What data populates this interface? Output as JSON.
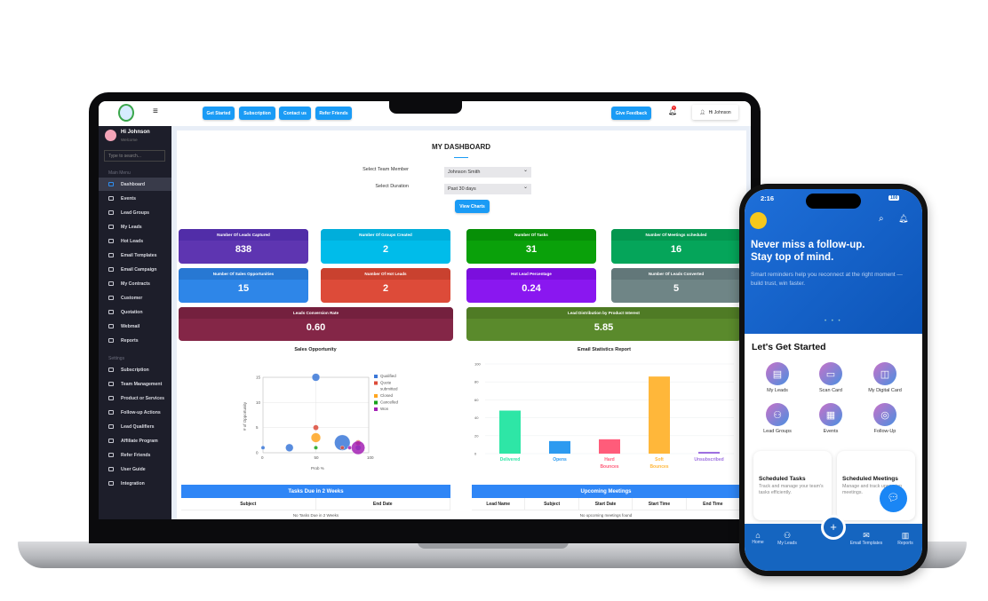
{
  "laptop": {
    "topbar": {
      "buttons": [
        "Get Started",
        "Subscription",
        "Contact us",
        "Refer Friends"
      ],
      "feedback": "Give Feedback",
      "notif_count": "0",
      "user": "Hi Johnson"
    },
    "sidebar": {
      "user_name": "Hi Johnson",
      "user_sub": "Welcome",
      "search_placeholder": "Type to search...",
      "main_menu_label": "Main Menu",
      "settings_label": "Settings",
      "main_items": [
        "Dashboard",
        "Events",
        "Lead Groups",
        "My Leads",
        "Hot Leads",
        "Email Templates",
        "Email Campaign",
        "My Contracts",
        "Customer",
        "Quotation",
        "Webmail",
        "Reports"
      ],
      "settings_items": [
        "Subscription",
        "Team Management",
        "Product or Services",
        "Follow-up Actions",
        "Lead Qualifiers",
        "Affiliate Program",
        "Refer Friends",
        "User Guide",
        "Integration"
      ],
      "active": "Dashboard"
    },
    "dashboard": {
      "title": "MY DASHBOARD",
      "team_label": "Select Team Member",
      "team_value": "Johnson Smith",
      "duration_label": "Select Duration",
      "duration_value": "Past 30 days",
      "view_charts": "View Charts",
      "cards": [
        {
          "title": "Number Of Leads Captured",
          "value": "838",
          "color": "#5e35b1",
          "head": "#512da8"
        },
        {
          "title": "Number Of Groups Created",
          "value": "2",
          "color": "#00bcea",
          "head": "#00aedb"
        },
        {
          "title": "Number Of Tasks",
          "value": "31",
          "color": "#0aa10a",
          "head": "#078f07"
        },
        {
          "title": "Number Of Meetings scheduled",
          "value": "16",
          "color": "#05a55a",
          "head": "#04964f"
        },
        {
          "title": "Number Of Sales Opportunities",
          "value": "15",
          "color": "#2e86e8",
          "head": "#2778d3"
        },
        {
          "title": "Number Of Hot Leads",
          "value": "2",
          "color": "#dd4b39",
          "head": "#c9412f"
        },
        {
          "title": "Hot Lead Percentage",
          "value": "0.24",
          "color": "#8a17f0",
          "head": "#7b0fdd"
        },
        {
          "title": "Number Of Leads Converted",
          "value": "5",
          "color": "#6f8586",
          "head": "#627779"
        },
        {
          "title": "Leads Conversion Rate",
          "value": "0.60",
          "color": "#842647",
          "head": "#74203e"
        },
        {
          "title": "Lead Distribution by Product Interest",
          "value": "5.85",
          "color": "#5a8a2c",
          "head": "#4f7b25"
        }
      ],
      "tasks": {
        "title": "Tasks Due in 2 Weeks",
        "columns": [
          "Subject",
          "End Date"
        ],
        "empty": "No Tasks Due in 2 Weeks"
      },
      "meetings": {
        "title": "Upcoming Meetings",
        "columns": [
          "Lead Name",
          "Subject",
          "Start Date",
          "Start Time",
          "End Time"
        ],
        "empty": "No upcoming meetings found"
      }
    }
  },
  "chart_data": [
    {
      "type": "scatter",
      "title": "Sales Opportunity",
      "xlabel": "Prob %",
      "ylabel": "# of Opportunity",
      "xlim": [
        0,
        100
      ],
      "ylim": [
        0,
        15
      ],
      "xticks": [
        0,
        50,
        100
      ],
      "yticks": [
        0,
        5,
        10,
        15
      ],
      "grid": true,
      "legend": "right",
      "series": [
        {
          "name": "Qualified",
          "color": "#3b78d8",
          "points": [
            {
              "x": 0,
              "y": 1,
              "size": 1
            },
            {
              "x": 25,
              "y": 1,
              "size": 4
            },
            {
              "x": 50,
              "y": 15,
              "size": 4
            },
            {
              "x": 75,
              "y": 2,
              "size": 16
            },
            {
              "x": 90,
              "y": 1,
              "size": 2
            }
          ]
        },
        {
          "name": "Quote submitted",
          "color": "#dc4b39",
          "points": [
            {
              "x": 50,
              "y": 5,
              "size": 2
            },
            {
              "x": 75,
              "y": 1,
              "size": 1
            },
            {
              "x": 90,
              "y": 2,
              "size": 2
            }
          ]
        },
        {
          "name": "Closed",
          "color": "#ffa520",
          "points": [
            {
              "x": 50,
              "y": 3,
              "size": 6
            }
          ]
        },
        {
          "name": "Cancelled",
          "color": "#16a31a",
          "points": [
            {
              "x": 50,
              "y": 1,
              "size": 1
            }
          ]
        },
        {
          "name": "Won",
          "color": "#a321b4",
          "points": [
            {
              "x": 90,
              "y": 1,
              "size": 12
            },
            {
              "x": 82,
              "y": 1,
              "size": 1
            }
          ]
        }
      ]
    },
    {
      "type": "bar",
      "title": "Email Statistics Report",
      "ylim": [
        0,
        100
      ],
      "yticks": [
        0,
        20,
        40,
        60,
        80,
        100
      ],
      "grid": true,
      "categories": [
        "Delivered",
        "Opens",
        "Hard Bounces",
        "Soft Bounces",
        "Unsubscribed"
      ],
      "values": [
        48,
        14,
        16,
        86,
        2
      ],
      "colors": [
        "#2ee6a6",
        "#2c9af0",
        "#ff5c7a",
        "#ffb73a",
        "#9d70e0"
      ]
    }
  ],
  "phone": {
    "time": "2:16",
    "battery": "100",
    "hero_title_1": "Never miss a follow-up.",
    "hero_title_2": "Stay top of mind.",
    "hero_sub": "Smart reminders help you reconnect at the right moment — build trust, win faster.",
    "section_title": "Let's Get Started",
    "grid": [
      {
        "label": "My Leads",
        "icon": "document-icon"
      },
      {
        "label": "Scan Card",
        "icon": "scan-card-icon"
      },
      {
        "label": "My Digital Card",
        "icon": "nfc-card-icon"
      },
      {
        "label": "Lead Groups",
        "icon": "users-icon"
      },
      {
        "label": "Events",
        "icon": "calendar-icon"
      },
      {
        "label": "Follow-Up",
        "icon": "target-icon"
      }
    ],
    "cards": [
      {
        "title": "Scheduled Tasks",
        "desc": "Track and manage your team's tasks efficiently."
      },
      {
        "title": "Scheduled Meetings",
        "desc": "Manage and track upcoming meetings."
      }
    ],
    "nav": [
      "Home",
      "My Leads",
      "Email Templates",
      "Reports"
    ]
  }
}
